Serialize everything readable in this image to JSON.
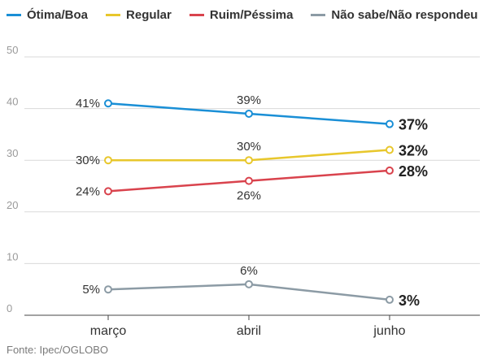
{
  "source": "Fonte: Ipec/OGLOBO",
  "chart_data": {
    "type": "line",
    "title": "",
    "xlabel": "",
    "ylabel": "",
    "categories": [
      "março",
      "abril",
      "junho"
    ],
    "ylim": [
      0,
      50
    ],
    "yticks": [
      "0",
      "10",
      "20",
      "30",
      "40",
      "50"
    ],
    "grid": true,
    "legend_position": "top",
    "series": [
      {
        "name": "Ótima/Boa",
        "color": "#1a8fd6",
        "values": [
          41,
          39,
          37
        ],
        "labels": [
          "41%",
          "39%",
          "37%"
        ],
        "label_pos": [
          "left",
          "above",
          "right"
        ]
      },
      {
        "name": "Regular",
        "color": "#e8c72c",
        "values": [
          30,
          30,
          32
        ],
        "labels": [
          "30%",
          "30%",
          "32%"
        ],
        "label_pos": [
          "left",
          "above",
          "right"
        ]
      },
      {
        "name": "Ruim/Péssima",
        "color": "#d9434d",
        "values": [
          24,
          26,
          28
        ],
        "labels": [
          "24%",
          "26%",
          "28%"
        ],
        "label_pos": [
          "left",
          "below",
          "right"
        ]
      },
      {
        "name": "Não sabe/Não respondeu",
        "color": "#8c9ba5",
        "values": [
          5,
          6,
          3
        ],
        "labels": [
          "5%",
          "6%",
          "3%"
        ],
        "label_pos": [
          "left",
          "above",
          "right"
        ]
      }
    ]
  }
}
